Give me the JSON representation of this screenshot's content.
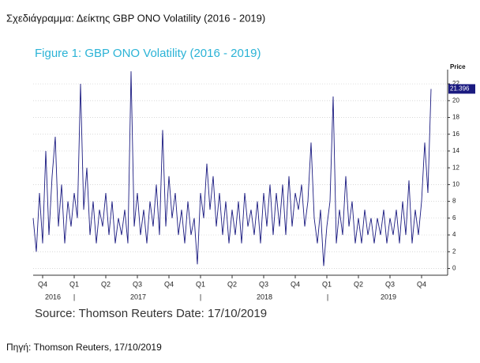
{
  "header": "Σχεδιάγραμμα: Δείκτης GBP ONO Volatility (2016 - 2019)",
  "chart_data": {
    "type": "line",
    "title": "Figure 1: GBP ONO Volatility (2016 - 2019)",
    "y_axis_label": "Price",
    "color": "#1a1a80",
    "grid": true,
    "values": [
      6,
      2,
      9,
      3,
      14,
      4,
      11,
      15.7,
      5,
      10,
      3,
      8,
      5,
      9,
      6,
      22,
      7,
      12,
      4,
      8,
      3,
      7,
      5,
      9,
      4,
      8,
      3,
      6,
      4,
      7,
      3,
      23.5,
      5,
      9,
      4,
      7,
      3,
      8,
      5,
      10,
      4,
      16.5,
      5,
      11,
      6,
      9,
      4,
      7,
      3,
      8,
      4,
      6,
      0.5,
      9,
      6,
      12.5,
      7,
      11,
      5,
      9,
      4,
      8,
      3,
      7,
      4,
      8,
      3,
      9,
      5,
      7,
      4,
      8,
      3,
      9,
      5,
      10,
      4,
      9,
      5,
      10,
      4,
      11,
      5,
      9,
      7,
      10,
      5,
      8,
      15,
      6,
      3,
      7,
      0.3,
      5,
      8,
      20.5,
      3,
      7,
      4,
      11,
      5,
      8,
      3,
      6,
      3,
      7,
      4,
      6,
      3,
      6,
      4,
      7,
      3,
      6,
      4,
      7,
      3,
      8,
      4,
      10.5,
      3,
      7,
      4,
      8,
      15,
      9,
      21.396
    ],
    "last_value_label": "21.396",
    "xlim": [
      0,
      126
    ],
    "xticks": [
      {
        "value": 3,
        "label": "Q4"
      },
      {
        "value": 13,
        "label": "Q1"
      },
      {
        "value": 23,
        "label": "Q2"
      },
      {
        "value": 33,
        "label": "Q3"
      },
      {
        "value": 43,
        "label": "Q4"
      },
      {
        "value": 53,
        "label": "Q1"
      },
      {
        "value": 63,
        "label": "Q2"
      },
      {
        "value": 73,
        "label": "Q3"
      },
      {
        "value": 83,
        "label": "Q4"
      },
      {
        "value": 93,
        "label": "Q1"
      },
      {
        "value": 103,
        "label": "Q2"
      },
      {
        "value": 113,
        "label": "Q3"
      },
      {
        "value": 123,
        "label": "Q4"
      }
    ],
    "year_labels": [
      "2016",
      "2017",
      "2018",
      "2019"
    ],
    "ylim": [
      -0.8,
      23.7
    ],
    "yticks": [
      0,
      2,
      4,
      6,
      8,
      10,
      12,
      14,
      16,
      18,
      20,
      22
    ],
    "source": "Source: Thomson Reuters Date: 17/10/2019"
  },
  "footer": "Πηγή: Thomson Reuters, 17/10/2019"
}
